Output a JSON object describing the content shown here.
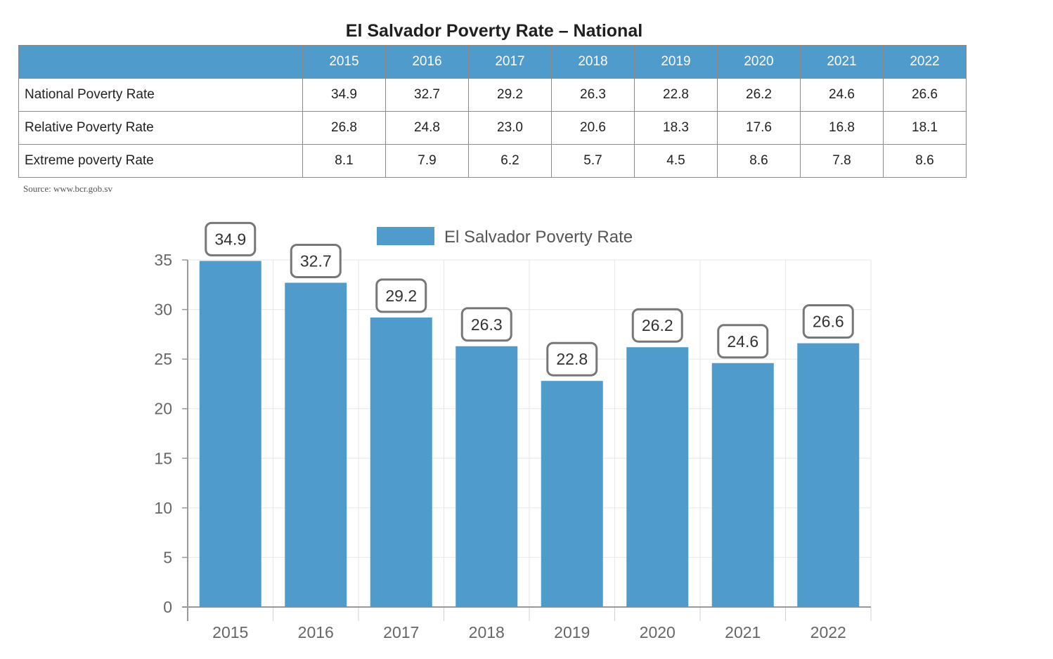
{
  "table": {
    "title": "El Salvador Poverty Rate – National",
    "years": [
      "2015",
      "2016",
      "2017",
      "2018",
      "2019",
      "2020",
      "2021",
      "2022"
    ],
    "rows": [
      {
        "label": "National Poverty Rate",
        "values": [
          "34.9",
          "32.7",
          "29.2",
          "26.3",
          "22.8",
          "26.2",
          "24.6",
          "26.6"
        ]
      },
      {
        "label": "Relative Poverty Rate",
        "values": [
          "26.8",
          "24.8",
          "23.0",
          "20.6",
          "18.3",
          "17.6",
          "16.8",
          "18.1"
        ]
      },
      {
        "label": "Extreme poverty Rate",
        "values": [
          "8.1",
          "7.9",
          "6.2",
          "5.7",
          "4.5",
          "8.6",
          "7.8",
          "8.6"
        ]
      }
    ],
    "source": "Source: www.bcr.gob.sv",
    "header_color": "#4f9bcc"
  },
  "chart_data": {
    "type": "bar",
    "categories": [
      "2015",
      "2016",
      "2017",
      "2018",
      "2019",
      "2020",
      "2021",
      "2022"
    ],
    "series": [
      {
        "name": "El Salvador Poverty Rate",
        "values": [
          34.9,
          32.7,
          29.2,
          26.3,
          22.8,
          26.2,
          24.6,
          26.6
        ]
      }
    ],
    "ylim": [
      0,
      35
    ],
    "yticks": [
      0,
      5,
      10,
      15,
      20,
      25,
      30,
      35
    ],
    "grid": true,
    "legend": "top",
    "data_labels": true,
    "bar_color": "#4f9bcc"
  }
}
